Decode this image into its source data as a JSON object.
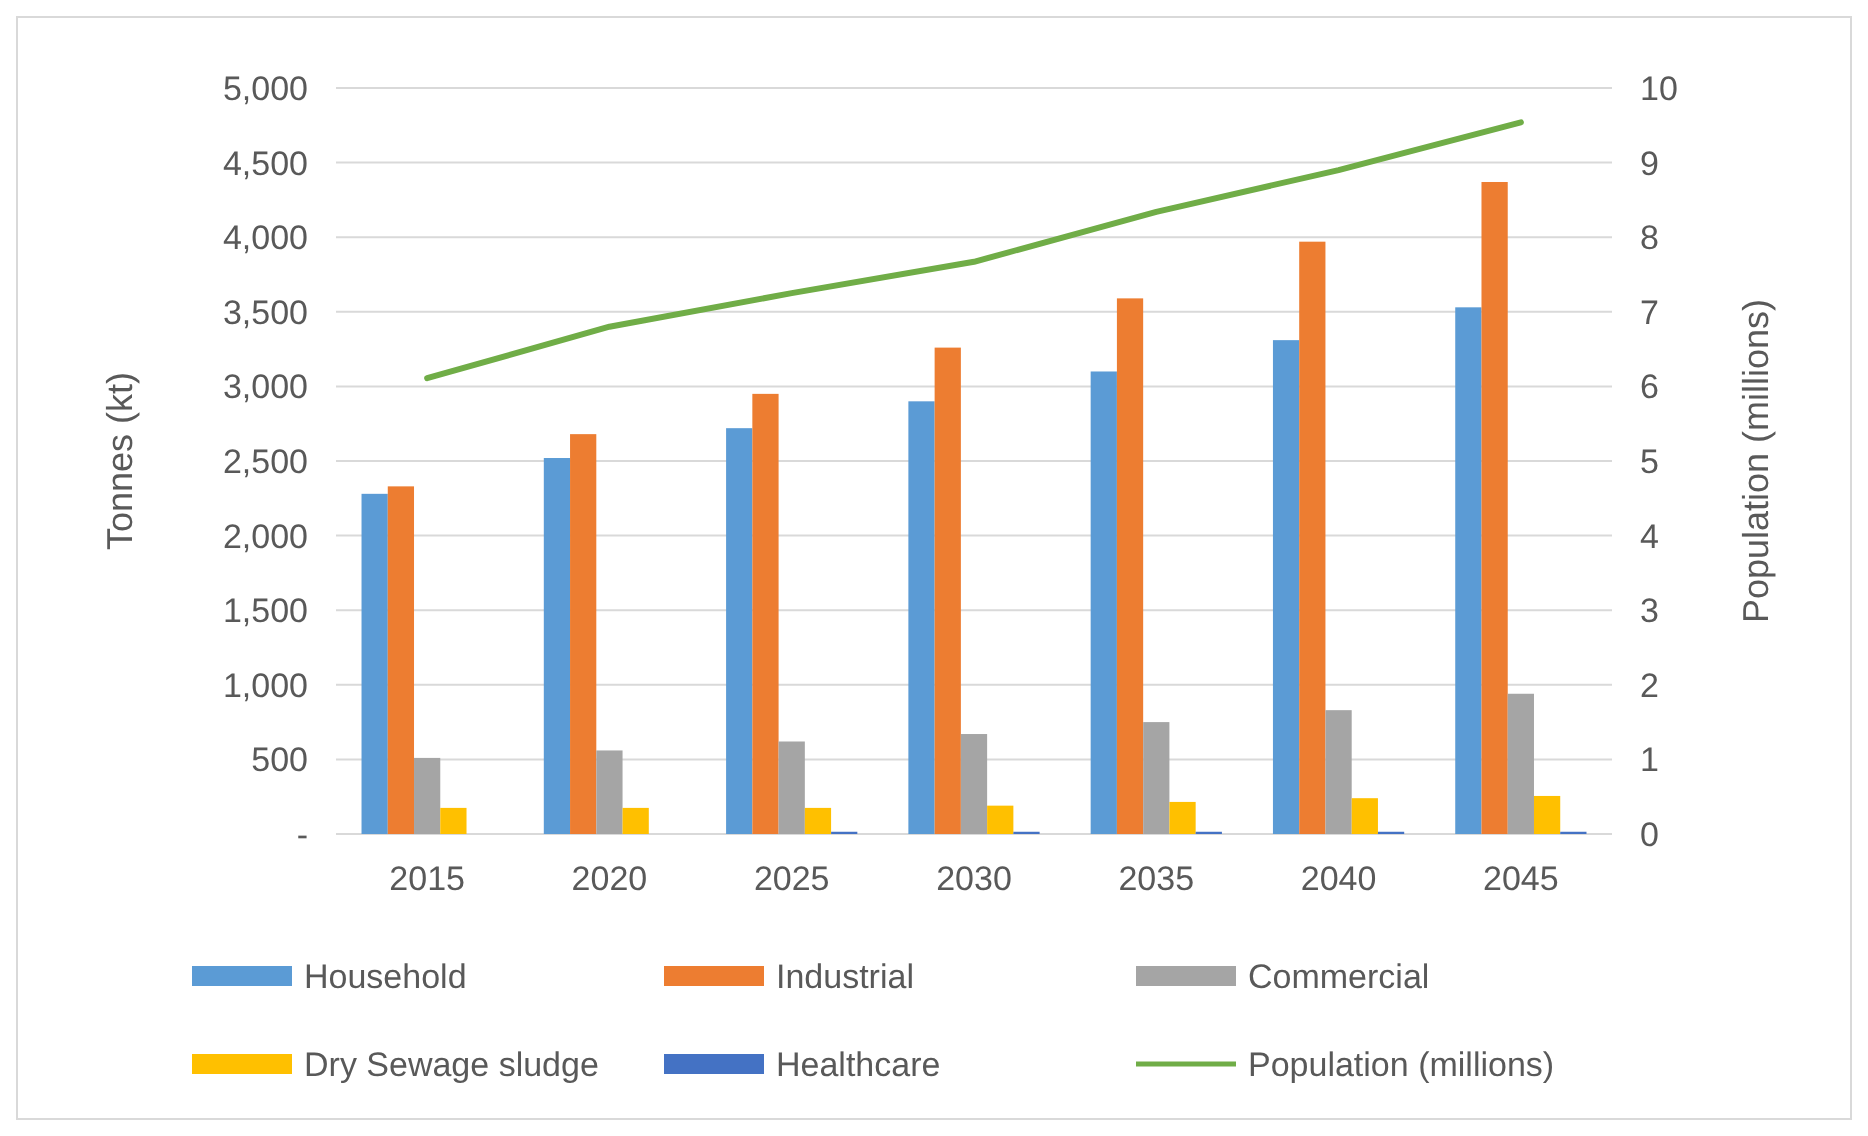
{
  "chart_data": {
    "type": "bar",
    "ylabel": "Tonnes (kt)",
    "y2label": "Population (millions)",
    "categories": [
      "2015",
      "2020",
      "2025",
      "2030",
      "2035",
      "2040",
      "2045"
    ],
    "series": [
      {
        "name": "Household",
        "color": "#5b9bd5",
        "values": [
          2280,
          2520,
          2720,
          2900,
          3100,
          3310,
          3530
        ]
      },
      {
        "name": "Industrial",
        "color": "#ed7d31",
        "values": [
          2330,
          2680,
          2950,
          3260,
          3590,
          3970,
          4370
        ]
      },
      {
        "name": "Commercial",
        "color": "#a5a5a5",
        "values": [
          510,
          560,
          620,
          670,
          750,
          830,
          940
        ]
      },
      {
        "name": "Dry Sewage sludge",
        "color": "#ffc000",
        "values": [
          175,
          175,
          175,
          190,
          215,
          240,
          255
        ]
      },
      {
        "name": "Healthcare",
        "color": "#4472c4",
        "values": [
          0,
          0,
          15,
          15,
          15,
          15,
          15
        ]
      },
      {
        "name": "Population (millions)",
        "type": "line",
        "axis": "y2",
        "color": "#70ad47",
        "values": [
          6.11,
          6.8,
          7.25,
          7.67,
          8.34,
          8.9,
          9.54
        ]
      }
    ],
    "ylim": [
      0,
      5000
    ],
    "yticks": [
      {
        "value": 0,
        "label": "-"
      },
      {
        "value": 500,
        "label": "500"
      },
      {
        "value": 1000,
        "label": "1,000"
      },
      {
        "value": 1500,
        "label": "1,500"
      },
      {
        "value": 2000,
        "label": "2,000"
      },
      {
        "value": 2500,
        "label": "2,500"
      },
      {
        "value": 3000,
        "label": "3,000"
      },
      {
        "value": 3500,
        "label": "3,500"
      },
      {
        "value": 4000,
        "label": "4,000"
      },
      {
        "value": 4500,
        "label": "4,500"
      },
      {
        "value": 5000,
        "label": "5,000"
      }
    ],
    "y2lim": [
      0,
      10
    ],
    "y2ticks": [
      0,
      1,
      2,
      3,
      4,
      5,
      6,
      7,
      8,
      9,
      10
    ],
    "grid": "y",
    "legend": "bottom"
  }
}
